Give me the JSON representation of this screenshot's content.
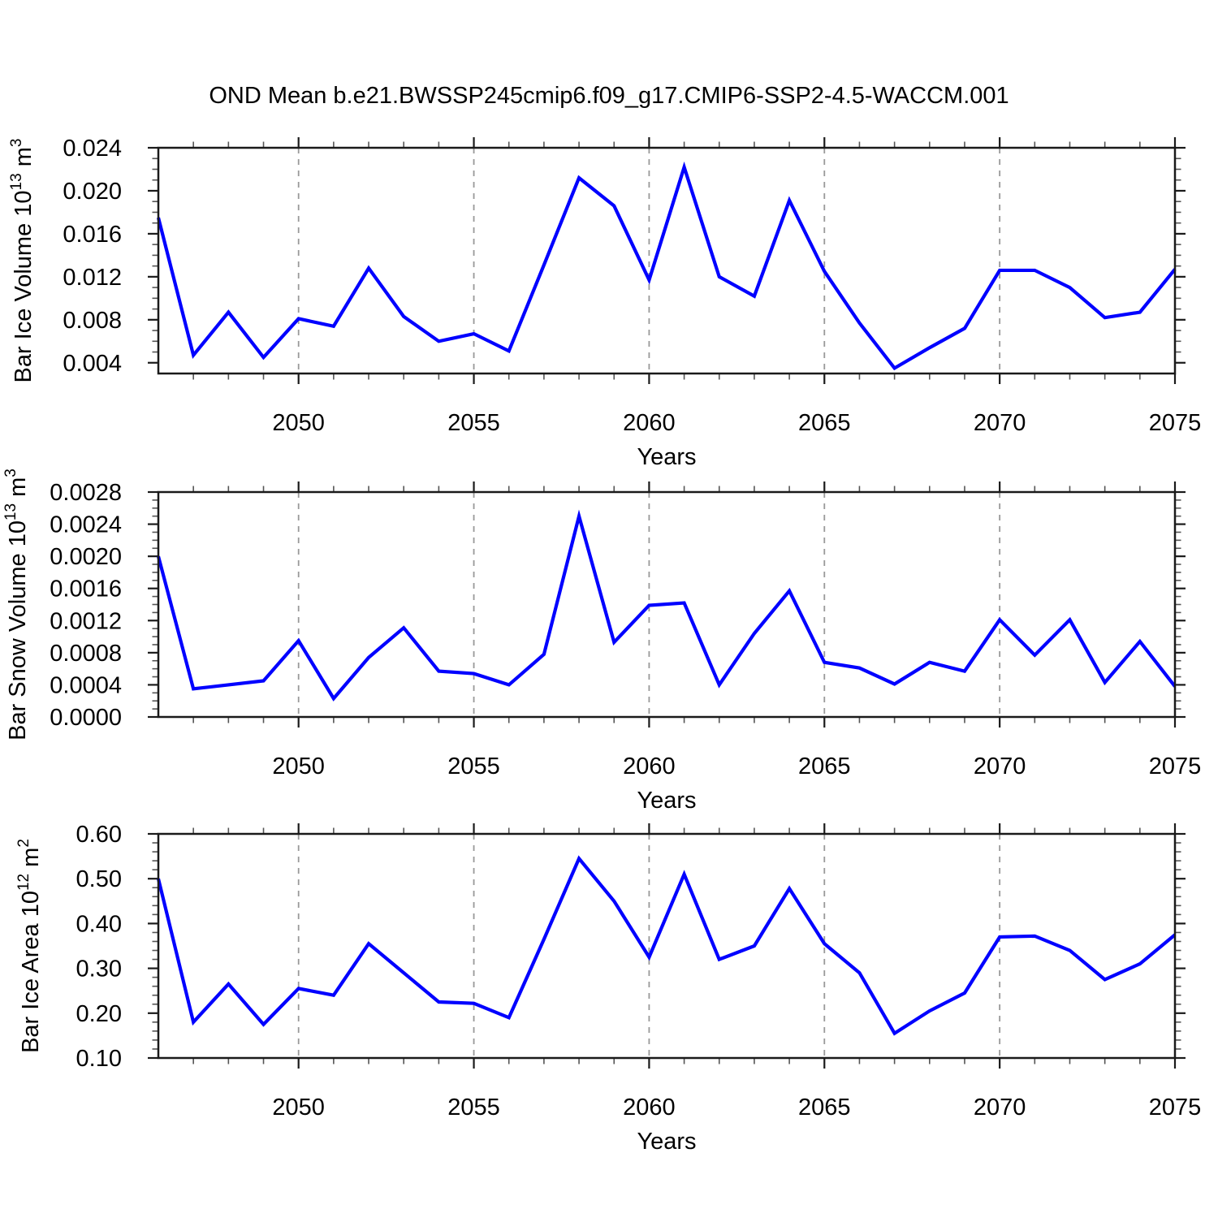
{
  "title": "OND Mean b.e21.BWSSP245cmip6.f09_g17.CMIP6-SSP2-4.5-WACCM.001",
  "line_color": "#0000ff",
  "grid_color": "#999999",
  "frame_color": "#1a1a1a",
  "minor_tick_color": "#555555",
  "chart_data": [
    {
      "type": "line",
      "name": "ice-volume",
      "ylabel_parts": [
        {
          "t": "Bar Ice Volume 10",
          "sup": false
        },
        {
          "t": "13",
          "sup": true
        },
        {
          "t": " m",
          "sup": false
        },
        {
          "t": "3",
          "sup": true
        }
      ],
      "xlabel": "Years",
      "x": [
        2046,
        2047,
        2048,
        2049,
        2050,
        2051,
        2052,
        2053,
        2054,
        2055,
        2056,
        2057,
        2058,
        2059,
        2060,
        2061,
        2062,
        2063,
        2064,
        2065,
        2066,
        2067,
        2068,
        2069,
        2070,
        2071,
        2072,
        2073,
        2074,
        2075
      ],
      "values": [
        0.0175,
        0.0047,
        0.0087,
        0.0045,
        0.0081,
        0.0074,
        0.0128,
        0.0083,
        0.006,
        0.0067,
        0.0051,
        0.0131,
        0.0212,
        0.0186,
        0.0117,
        0.0222,
        0.012,
        0.0102,
        0.0191,
        0.0125,
        0.0077,
        0.0035,
        0.0054,
        0.0072,
        0.0126,
        0.0126,
        0.011,
        0.0082,
        0.0087,
        0.0127
      ],
      "xlim": [
        2046,
        2075
      ],
      "ylim": [
        0.003,
        0.024
      ],
      "yticks": [
        {
          "v": 0.004,
          "label": "0.004"
        },
        {
          "v": 0.008,
          "label": "0.008"
        },
        {
          "v": 0.012,
          "label": "0.012"
        },
        {
          "v": 0.016,
          "label": "0.016"
        },
        {
          "v": 0.02,
          "label": "0.020"
        },
        {
          "v": 0.024,
          "label": "0.024"
        }
      ],
      "y_minor_step": 0.001,
      "xticks": [
        {
          "v": 2050,
          "label": "2050"
        },
        {
          "v": 2055,
          "label": "2055"
        },
        {
          "v": 2060,
          "label": "2060"
        },
        {
          "v": 2065,
          "label": "2065"
        },
        {
          "v": 2070,
          "label": "2070"
        },
        {
          "v": 2075,
          "label": "2075"
        }
      ],
      "x_minor_step": 1,
      "gridlines_at": [
        2050,
        2055,
        2060,
        2065,
        2070
      ],
      "grid": true,
      "legend": "none"
    },
    {
      "type": "line",
      "name": "snow-volume",
      "ylabel_parts": [
        {
          "t": "Bar Snow Volume 10",
          "sup": false
        },
        {
          "t": "13",
          "sup": true
        },
        {
          "t": " m",
          "sup": false
        },
        {
          "t": "3",
          "sup": true
        }
      ],
      "xlabel": "Years",
      "x": [
        2046,
        2047,
        2048,
        2049,
        2050,
        2051,
        2052,
        2053,
        2054,
        2055,
        2056,
        2057,
        2058,
        2059,
        2060,
        2061,
        2062,
        2063,
        2064,
        2065,
        2066,
        2067,
        2068,
        2069,
        2070,
        2071,
        2072,
        2073,
        2074,
        2075
      ],
      "values": [
        0.002,
        0.00035,
        0.0004,
        0.00045,
        0.00095,
        0.00023,
        0.00074,
        0.00111,
        0.00057,
        0.00054,
        0.0004,
        0.00078,
        0.0025,
        0.00093,
        0.00139,
        0.00142,
        0.0004,
        0.00104,
        0.00157,
        0.00068,
        0.00061,
        0.00041,
        0.00068,
        0.00057,
        0.00121,
        0.00077,
        0.00121,
        0.00043,
        0.00094,
        0.00038
      ],
      "xlim": [
        2046,
        2075
      ],
      "ylim": [
        0.0,
        0.0028
      ],
      "yticks": [
        {
          "v": 0.0,
          "label": "0.0000"
        },
        {
          "v": 0.0004,
          "label": "0.0004"
        },
        {
          "v": 0.0008,
          "label": "0.0008"
        },
        {
          "v": 0.0012,
          "label": "0.0012"
        },
        {
          "v": 0.0016,
          "label": "0.0016"
        },
        {
          "v": 0.002,
          "label": "0.0020"
        },
        {
          "v": 0.0024,
          "label": "0.0024"
        },
        {
          "v": 0.0028,
          "label": "0.0028"
        }
      ],
      "y_minor_step": 0.0001,
      "xticks": [
        {
          "v": 2050,
          "label": "2050"
        },
        {
          "v": 2055,
          "label": "2055"
        },
        {
          "v": 2060,
          "label": "2060"
        },
        {
          "v": 2065,
          "label": "2065"
        },
        {
          "v": 2070,
          "label": "2070"
        },
        {
          "v": 2075,
          "label": "2075"
        }
      ],
      "x_minor_step": 1,
      "gridlines_at": [
        2050,
        2055,
        2060,
        2065,
        2070
      ],
      "grid": true,
      "legend": "none"
    },
    {
      "type": "line",
      "name": "ice-area",
      "ylabel_parts": [
        {
          "t": "Bar Ice Area 10",
          "sup": false
        },
        {
          "t": "12",
          "sup": true
        },
        {
          "t": " m",
          "sup": false
        },
        {
          "t": "2",
          "sup": true
        }
      ],
      "xlabel": "Years",
      "x": [
        2046,
        2047,
        2048,
        2049,
        2050,
        2051,
        2052,
        2053,
        2054,
        2055,
        2056,
        2057,
        2058,
        2059,
        2060,
        2061,
        2062,
        2063,
        2064,
        2065,
        2066,
        2067,
        2068,
        2069,
        2070,
        2071,
        2072,
        2073,
        2074,
        2075
      ],
      "values": [
        0.5,
        0.18,
        0.265,
        0.175,
        0.255,
        0.24,
        0.355,
        0.29,
        0.225,
        0.222,
        0.19,
        0.365,
        0.545,
        0.45,
        0.325,
        0.51,
        0.32,
        0.35,
        0.478,
        0.355,
        0.29,
        0.155,
        0.205,
        0.245,
        0.37,
        0.372,
        0.34,
        0.275,
        0.31,
        0.375
      ],
      "xlim": [
        2046,
        2075
      ],
      "ylim": [
        0.1,
        0.6
      ],
      "yticks": [
        {
          "v": 0.1,
          "label": "0.10"
        },
        {
          "v": 0.2,
          "label": "0.20"
        },
        {
          "v": 0.3,
          "label": "0.30"
        },
        {
          "v": 0.4,
          "label": "0.40"
        },
        {
          "v": 0.5,
          "label": "0.50"
        },
        {
          "v": 0.6,
          "label": "0.60"
        }
      ],
      "y_minor_step": 0.02,
      "xticks": [
        {
          "v": 2050,
          "label": "2050"
        },
        {
          "v": 2055,
          "label": "2055"
        },
        {
          "v": 2060,
          "label": "2060"
        },
        {
          "v": 2065,
          "label": "2065"
        },
        {
          "v": 2070,
          "label": "2070"
        },
        {
          "v": 2075,
          "label": "2075"
        }
      ],
      "x_minor_step": 1,
      "gridlines_at": [
        2050,
        2055,
        2060,
        2065,
        2070
      ],
      "grid": true,
      "legend": "none"
    }
  ]
}
